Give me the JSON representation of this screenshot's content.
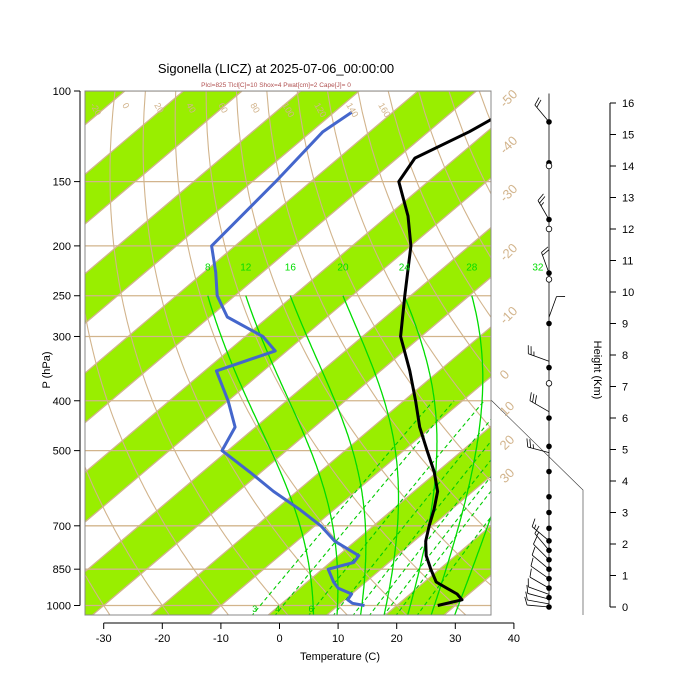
{
  "chart_data": {
    "type": "line",
    "title": "Sigonella (LICZ) at 2025-07-06_00:00:00",
    "subtitle": "Plcl=825 Tlcl[C]=10 Shox=4 Pwat[cm]=2 Cape[J]= 0",
    "xlabel": "Temperature (C)",
    "ylabel": "P (hPa)",
    "y2label": "Height (Km)",
    "xlim": [
      -35,
      45
    ],
    "ylim_hpa": [
      1050,
      100
    ],
    "x_ticks": [
      -30,
      -20,
      -10,
      0,
      10,
      20,
      30,
      40
    ],
    "p_ticks": [
      100,
      150,
      200,
      250,
      300,
      400,
      500,
      700,
      850,
      1000
    ],
    "height_ticks_km": [
      0,
      1,
      2,
      3,
      4,
      5,
      6,
      7,
      8,
      9,
      10,
      11,
      12,
      13,
      14,
      15,
      16
    ],
    "isotherm_band_labels": [
      {
        "text": "-50",
        "t": -50,
        "p": 108
      },
      {
        "text": "-40",
        "t": -40,
        "p": 133
      },
      {
        "text": "-30",
        "t": -30,
        "p": 165
      },
      {
        "text": "-20",
        "t": -20,
        "p": 215
      },
      {
        "text": "-10",
        "t": -10,
        "p": 285
      },
      {
        "text": "0",
        "t": 0,
        "p": 365
      },
      {
        "text": "10",
        "t": 10,
        "p": 430
      },
      {
        "text": "20",
        "t": 20,
        "p": 500
      },
      {
        "text": "30",
        "t": 30,
        "p": 580
      }
    ],
    "dry_adiabat_labels": [
      "-20",
      "0",
      "20",
      "40",
      "60",
      "80",
      "100",
      "120",
      "140",
      "160"
    ],
    "moist_adiabat_labels": [
      "8",
      "12",
      "16",
      "20",
      "24",
      "28",
      "32"
    ],
    "mixing_ratio_labels": [
      "3",
      "4",
      "6"
    ],
    "series": [
      {
        "name": "",
        "role": "temperature",
        "color": "#000000",
        "points": [
          [
            1000,
            27.0
          ],
          [
            975,
            30.0
          ],
          [
            950,
            28.0
          ],
          [
            925,
            25.0
          ],
          [
            900,
            22.0
          ],
          [
            850,
            18.5
          ],
          [
            800,
            15.0
          ],
          [
            750,
            12.0
          ],
          [
            700,
            9.5
          ],
          [
            650,
            7.0
          ],
          [
            600,
            4.0
          ],
          [
            550,
            -0.5
          ],
          [
            500,
            -6.0
          ],
          [
            450,
            -12.0
          ],
          [
            400,
            -18.0
          ],
          [
            350,
            -25.0
          ],
          [
            300,
            -33.5
          ],
          [
            250,
            -41.0
          ],
          [
            200,
            -50.0
          ],
          [
            175,
            -56.5
          ],
          [
            150,
            -65.0
          ],
          [
            135,
            -67.0
          ],
          [
            120,
            -63.0
          ],
          [
            110,
            -61.0
          ]
        ]
      },
      {
        "name": "",
        "role": "dewpoint",
        "color": "#4466cc",
        "points": [
          [
            1000,
            14.5
          ],
          [
            990,
            12.0
          ],
          [
            975,
            10.5
          ],
          [
            950,
            10.0
          ],
          [
            925,
            6.5
          ],
          [
            900,
            4.5
          ],
          [
            850,
            1.0
          ],
          [
            825,
            4.0
          ],
          [
            800,
            3.5
          ],
          [
            750,
            -3.5
          ],
          [
            700,
            -9.0
          ],
          [
            650,
            -16.0
          ],
          [
            600,
            -24.0
          ],
          [
            550,
            -32.0
          ],
          [
            500,
            -41.0
          ],
          [
            450,
            -43.5
          ],
          [
            400,
            -50.0
          ],
          [
            350,
            -58.0
          ],
          [
            320,
            -52.0
          ],
          [
            300,
            -57.0
          ],
          [
            275,
            -67.0
          ],
          [
            250,
            -73.0
          ],
          [
            225,
            -78.0
          ],
          [
            200,
            -84.0
          ],
          [
            150,
            -86.0
          ],
          [
            120,
            -88.0
          ],
          [
            110,
            -87.0
          ]
        ]
      }
    ],
    "wind_profile": {
      "markers_filled_km": [
        0,
        0.3,
        0.6,
        0.9,
        1.2,
        1.5,
        1.8,
        2.1,
        2.5,
        3.0,
        3.5,
        4.3,
        5.1,
        6.0,
        7.6,
        9.0,
        10.6,
        12.3,
        14.1,
        15.4
      ],
      "markers_open_km": [
        7.1,
        10.4,
        12.0,
        14.0
      ],
      "barbs": [
        {
          "km": 0.0,
          "dir": 275,
          "spd": 10
        },
        {
          "km": 0.1,
          "dir": 280,
          "spd": 10
        },
        {
          "km": 0.25,
          "dir": 285,
          "spd": 10
        },
        {
          "km": 0.4,
          "dir": 290,
          "spd": 10
        },
        {
          "km": 0.6,
          "dir": 300,
          "spd": 10
        },
        {
          "km": 0.9,
          "dir": 305,
          "spd": 10
        },
        {
          "km": 1.2,
          "dir": 310,
          "spd": 10
        },
        {
          "km": 1.5,
          "dir": 315,
          "spd": 10
        },
        {
          "km": 1.8,
          "dir": 320,
          "spd": 15
        },
        {
          "km": 2.1,
          "dir": 310,
          "spd": 15
        },
        {
          "km": 4.9,
          "dir": 285,
          "spd": 25
        },
        {
          "km": 6.2,
          "dir": 300,
          "spd": 30
        },
        {
          "km": 7.8,
          "dir": 290,
          "spd": 25
        },
        {
          "km": 9.2,
          "dir": 20,
          "spd": 10
        },
        {
          "km": 10.6,
          "dir": 340,
          "spd": 20
        },
        {
          "km": 12.3,
          "dir": 330,
          "spd": 25
        },
        {
          "km": 15.4,
          "dir": 320,
          "spd": 20
        }
      ]
    },
    "colors": {
      "band": "#99ee00",
      "isotherm": "#d2b48c",
      "grid": "#d2b48c",
      "moist_adiabat": "#00dd00",
      "mixing_ratio": "#00cc00",
      "temperature": "#000000",
      "dewpoint": "#4466cc"
    }
  }
}
